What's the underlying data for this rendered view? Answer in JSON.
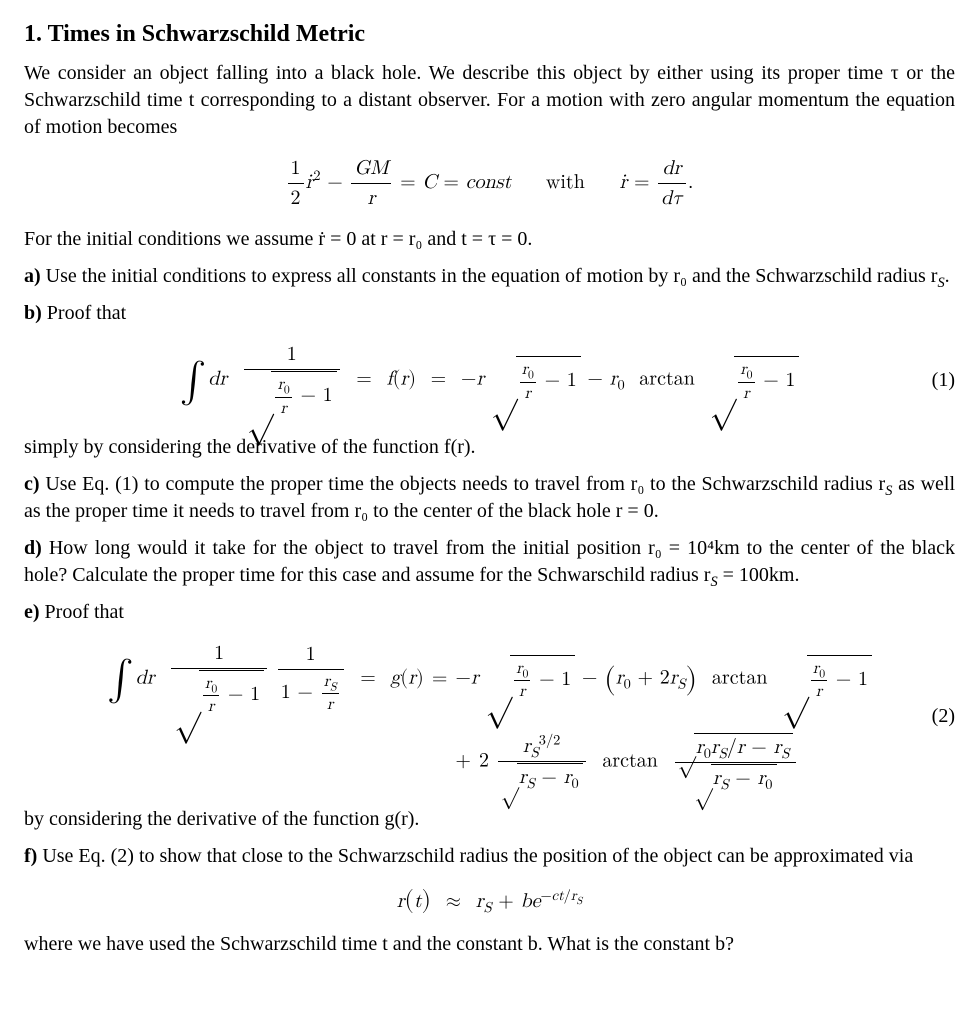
{
  "title": "1. Times in Schwarzschild Metric",
  "intro": "We consider an object falling into a black hole. We describe this object by either using its proper time τ or the Schwarzschild time t corresponding to a distant observer. For a motion with zero angular momentum the equation of motion becomes",
  "eq_motion": {
    "with_word": "with"
  },
  "initial_cond": "For the initial conditions we assume ṙ = 0 at r = r₀ and t = τ = 0.",
  "part_a": {
    "label": "a)",
    "text": "Use the initial conditions to express all constants in the equation of motion by r₀ and the Schwarzschild radius r",
    "text2": "."
  },
  "part_b": {
    "label": "b)",
    "text": "Proof that",
    "after": "simply by considering the derivative of the function f(r).",
    "eqnum": "(1)"
  },
  "part_c": {
    "label": "c)",
    "text": "Use Eq. (1) to compute the proper time the objects needs to travel from r₀ to the Schwarzschild radius r",
    "text2": " as well as the proper time it needs to travel from r₀ to the center of the black hole r = 0."
  },
  "part_d": {
    "label": "d)",
    "text": "How long would it take for the object to travel from the initial position r₀ = 10⁴km to the center of the black hole? Calculate the proper time for this case and assume for the Schwarschild radius r",
    "text2": " = 100km."
  },
  "part_e": {
    "label": "e)",
    "text": "Proof that",
    "after": "by considering the derivative of the function g(r).",
    "eqnum": "(2)"
  },
  "part_f": {
    "label": "f)",
    "text": "Use Eq. (2) to show that close to the Schwarzschild radius the position of the object can be approximated via",
    "after": "where we have used the Schwarzschild time t and the constant b. What is the constant b?"
  },
  "sym": {
    "tau": "τ",
    "approx": "≈",
    "int": "∫",
    "surd": "√",
    "rS": "S",
    "dot_r": "ṙ",
    "minus": "−",
    "arctan": "arctan",
    "const": "const",
    "half_num": "1",
    "half_den": "2",
    "GM": "GM",
    "C": "C",
    "dr": "dr",
    "dtau": "dτ",
    "r0sub": "0",
    "one": "1",
    "plus": "+",
    "two": "2",
    "threehalf": "3/2",
    "b": "b",
    "c": "c",
    "t": "t",
    "e": "e",
    "r": "r",
    "f": "f",
    "g": "g",
    "eq": "=",
    "lp": "(",
    "rp": ")",
    "slash": "/"
  }
}
